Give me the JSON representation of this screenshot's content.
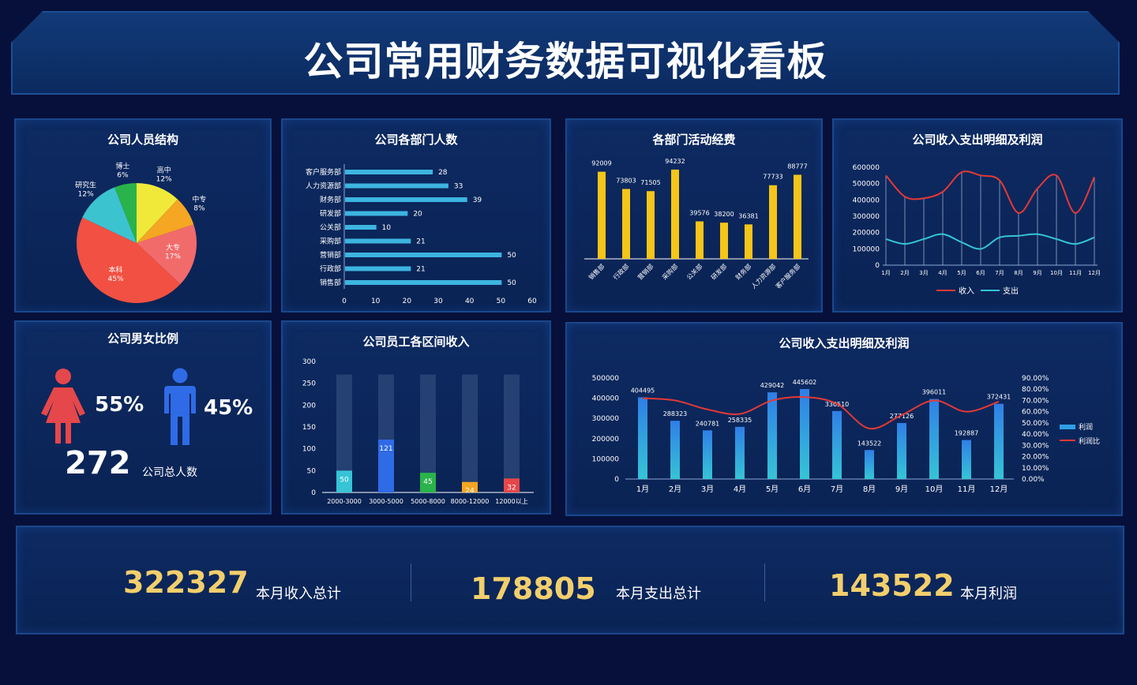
{
  "page_title": "公司常用财务数据可视化看板",
  "colors": {
    "background": "#06103a",
    "panel": "#0d2a62",
    "bar_yellow": "#f5c518",
    "line_red": "#e53935",
    "line_cyan": "#36c4d6",
    "summary_gold": "#f2cf6c"
  },
  "personnel_structure": {
    "title": "公司人员结构",
    "chart_data": {
      "type": "pie",
      "slices": [
        {
          "label": "高中",
          "value": 12,
          "color": "#f0e93a"
        },
        {
          "label": "中专",
          "value": 8,
          "color": "#f5a623"
        },
        {
          "label": "大专",
          "value": 17,
          "color": "#f26b6b"
        },
        {
          "label": "本科",
          "value": 45,
          "color": "#f25042"
        },
        {
          "label": "研究生",
          "value": 12,
          "color": "#3cc3d0"
        },
        {
          "label": "博士",
          "value": 6,
          "color": "#2ab34b"
        }
      ]
    }
  },
  "department_headcount": {
    "title": "公司各部门人数",
    "chart_data": {
      "type": "bar",
      "orientation": "horizontal",
      "categories": [
        "客户服务部",
        "人力资源部",
        "财务部",
        "研发部",
        "公关部",
        "采购部",
        "营销部",
        "行政部",
        "销售部"
      ],
      "values": [
        28,
        33,
        39,
        20,
        10,
        21,
        50,
        21,
        50
      ],
      "xlim": [
        0,
        60
      ],
      "xticks": [
        "0",
        "10",
        "20",
        "30",
        "40",
        "50",
        "60"
      ]
    }
  },
  "department_activity_fund": {
    "title": "各部门活动经费",
    "chart_data": {
      "type": "bar",
      "categories": [
        "销售部",
        "行政部",
        "营销部",
        "采购部",
        "公关部",
        "研发部",
        "财务部",
        "人力资源部",
        "客户服务部"
      ],
      "values": [
        92009,
        73803,
        71505,
        94232,
        39576,
        38200,
        36381,
        77733,
        88777
      ],
      "ylim": [
        0,
        100000
      ]
    }
  },
  "income_expense_lines": {
    "title": "公司收入支出明细及利润",
    "chart_data": {
      "type": "line",
      "categories": [
        "1月",
        "2月",
        "3月",
        "4月",
        "5月",
        "6月",
        "7月",
        "8月",
        "9月",
        "10月",
        "11月",
        "12月"
      ],
      "series": [
        {
          "name": "收入",
          "color": "#e53935",
          "values": [
            550000,
            420000,
            410000,
            450000,
            570000,
            550000,
            520000,
            320000,
            470000,
            550000,
            320000,
            540000
          ]
        },
        {
          "name": "支出",
          "color": "#36c4d6",
          "values": [
            160000,
            130000,
            160000,
            190000,
            140000,
            100000,
            170000,
            180000,
            190000,
            160000,
            130000,
            170000
          ]
        }
      ],
      "ylim": [
        0,
        600000
      ],
      "yticks": [
        "0",
        "100000",
        "200000",
        "300000",
        "400000",
        "500000",
        "600000"
      ]
    }
  },
  "gender_ratio": {
    "title": "公司男女比例",
    "female_pct": "55%",
    "male_pct": "45%",
    "total": "272",
    "total_label": "公司总人数",
    "female_icon": "female-icon",
    "male_icon": "male-icon"
  },
  "salary_ranges": {
    "title": "公司员工各区间收入",
    "chart_data": {
      "type": "bar",
      "categories": [
        "2000-3000",
        "3000-5000",
        "5000-8000",
        "8000-12000",
        "12000以上"
      ],
      "values": [
        50,
        121,
        45,
        24,
        32
      ],
      "colors": [
        "#36c4d6",
        "#2f6be6",
        "#2ab34b",
        "#f5a623",
        "#e5474a"
      ],
      "ylim": [
        0,
        300
      ],
      "yticks": [
        "0",
        "50",
        "100",
        "150",
        "200",
        "250",
        "300"
      ]
    }
  },
  "profit_combo": {
    "title": "公司收入支出明细及利润",
    "chart_data": {
      "type": "bar",
      "categories": [
        "1月",
        "2月",
        "3月",
        "4月",
        "5月",
        "6月",
        "7月",
        "8月",
        "9月",
        "10月",
        "11月",
        "12月"
      ],
      "series": [
        {
          "name": "利润",
          "type": "bar",
          "values": [
            404495,
            288323,
            240781,
            258335,
            429042,
            445602,
            336510,
            143522,
            277126,
            396011,
            192887,
            372431
          ],
          "labels": [
            "404495",
            "288323",
            "240781",
            "258335",
            "429042",
            "445602",
            "336510",
            "143522",
            "277126",
            "396011",
            "192887",
            "372431"
          ]
        },
        {
          "name": "利润比",
          "type": "line",
          "color": "#e53935",
          "values": [
            72,
            70,
            62,
            58,
            70,
            73,
            67,
            45,
            57,
            70,
            60,
            69
          ]
        }
      ],
      "ylim": [
        0,
        500000
      ],
      "yticks": [
        "0",
        "100000",
        "200000",
        "300000",
        "400000",
        "500000"
      ],
      "y2lim": [
        0,
        90
      ],
      "y2ticks": [
        "0.00%",
        "10.00%",
        "20.00%",
        "30.00%",
        "40.00%",
        "50.00%",
        "60.00%",
        "70.00%",
        "80.00%",
        "90.00%"
      ]
    }
  },
  "summary": {
    "income_total": "322327",
    "income_label": "本月收入总计",
    "expense_total": "178805",
    "expense_label": "本月支出总计",
    "profit": "143522",
    "profit_label": "本月利润"
  }
}
